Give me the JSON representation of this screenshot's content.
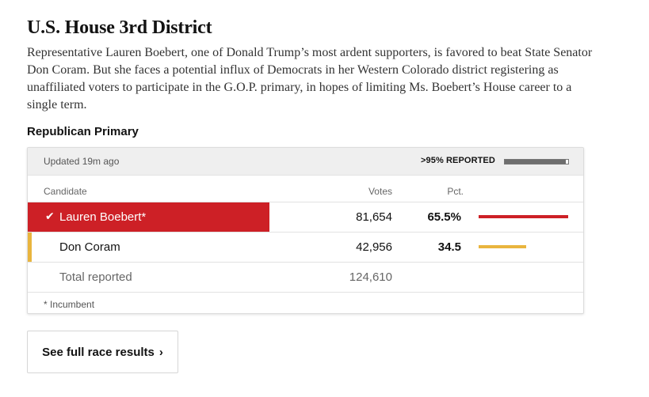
{
  "race": {
    "title": "U.S. House 3rd District",
    "summary": "Representative Lauren Boebert, one of Donald Trump’s most ardent supporters, is favored to beat State Senator Don Coram. But she faces a potential influx of Democrats in her Western Colorado district registering as unaffiliated voters to participate in the G.O.P. primary, in hopes of limiting Ms. Boebert’s House career to a single term.",
    "primary_label": "Republican Primary"
  },
  "table": {
    "updated": "Updated 19m ago",
    "reported_label": ">95% REPORTED",
    "reported_fraction": 0.96,
    "headers": {
      "candidate": "Candidate",
      "votes": "Votes",
      "pct": "Pct."
    },
    "candidates": [
      {
        "name": "Lauren Boebert*",
        "votes": "81,654",
        "pct": "65.5%",
        "pct_value": 65.5,
        "color": "#cd2026",
        "winner": true
      },
      {
        "name": "Don Coram",
        "votes": "42,956",
        "pct": "34.5",
        "pct_value": 34.5,
        "color": "#e9b53e",
        "winner": false
      }
    ],
    "total": {
      "label": "Total reported",
      "votes": "124,610"
    },
    "footnote": "* Incumbent"
  },
  "cta": {
    "label": "See full race results",
    "icon": "chevron-right-icon"
  },
  "colors": {
    "winner": "#cd2026",
    "runner_up": "#e9b53e",
    "reported_bar": "#6e6e6e"
  }
}
